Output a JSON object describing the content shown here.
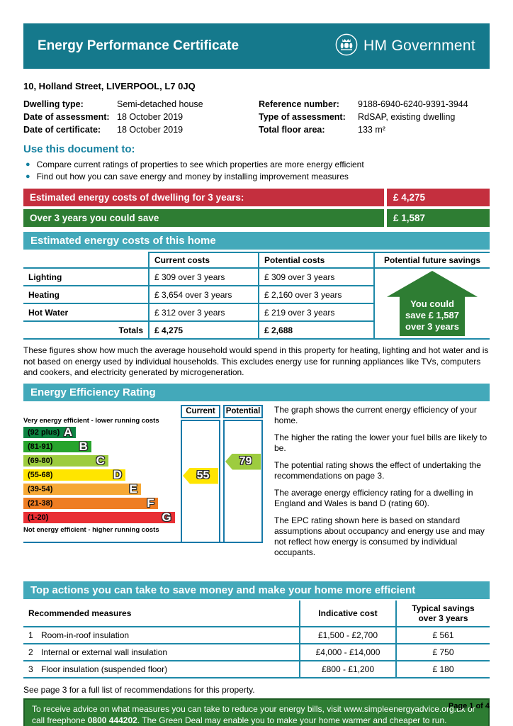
{
  "header": {
    "title": "Energy Performance Certificate",
    "gov_label": "HM Government"
  },
  "property": {
    "address": "10, Holland Street, LIVERPOOL, L7 0JQ",
    "details_left": [
      {
        "label": "Dwelling type:",
        "value": "Semi-detached house"
      },
      {
        "label": "Date of assessment:",
        "value": "18 October 2019"
      },
      {
        "label": "Date of certificate:",
        "value": "18 October 2019"
      }
    ],
    "details_right": [
      {
        "label": "Reference number:",
        "value": "9188-6940-6240-9391-3944"
      },
      {
        "label": "Type of assessment:",
        "value": "RdSAP, existing dwelling"
      },
      {
        "label": "Total floor area:",
        "value": "133 m²"
      }
    ]
  },
  "usage": {
    "heading": "Use this document to:",
    "bullet_icon": "●",
    "bullets": [
      "Compare current ratings of properties to see which properties are more energy efficient",
      "Find out how you can save energy and money by installing improvement measures"
    ]
  },
  "cost_bars": [
    {
      "label": "Estimated energy costs of dwelling for 3 years:",
      "value": "£ 4,275",
      "color": "#c42f3e"
    },
    {
      "label": "Over 3 years you could save",
      "value": "£ 1,587",
      "color": "#2e7d33"
    }
  ],
  "costs_section": {
    "banner": "Estimated energy costs of this home",
    "table": {
      "headers": [
        "",
        "Current costs",
        "Potential costs",
        "Potential future savings"
      ],
      "rows": [
        {
          "label": "Lighting",
          "current": "£ 309 over 3 years",
          "potential": "£ 309 over 3 years"
        },
        {
          "label": "Heating",
          "current": "£ 3,654 over 3 years",
          "potential": "£ 2,160 over 3 years"
        },
        {
          "label": "Hot Water",
          "current": "£ 312 over 3 years",
          "potential": "£ 219 over 3 years"
        }
      ],
      "totals_label": "Totals",
      "totals_current": "£ 4,275",
      "totals_potential": "£ 2,688",
      "savings_arrow_lines": [
        "You could",
        "save £ 1,587",
        "over 3 years"
      ]
    },
    "note": "These figures show how much the average household would spend in this property for heating, lighting and hot water and is not based on energy used by individual households. This excludes energy use for running appliances like TVs, computers and cookers, and electricity generated by microgeneration."
  },
  "rating_section": {
    "banner": "Energy Efficiency Rating",
    "chart_data": {
      "type": "bar",
      "title": "Energy Efficiency Rating",
      "top_label": "Very energy efficient - lower running costs",
      "bottom_label": "Not energy efficient - higher running costs",
      "columns": [
        "Current",
        "Potential"
      ],
      "bands": [
        {
          "letter": "A",
          "range": "(92 plus)",
          "color": "#0c8342",
          "width_pct": 34
        },
        {
          "letter": "B",
          "range": "(81-91)",
          "color": "#27a42c",
          "width_pct": 44
        },
        {
          "letter": "C",
          "range": "(69-80)",
          "color": "#9dcc3f",
          "width_pct": 55
        },
        {
          "letter": "D",
          "range": "(55-68)",
          "color": "#ffe500",
          "width_pct": 66
        },
        {
          "letter": "E",
          "range": "(39-54)",
          "color": "#f6a835",
          "width_pct": 76
        },
        {
          "letter": "F",
          "range": "(21-38)",
          "color": "#ee7d23",
          "width_pct": 87
        },
        {
          "letter": "G",
          "range": "(1-20)",
          "color": "#e92f34",
          "width_pct": 98
        }
      ],
      "current": {
        "value": 55,
        "band": "D",
        "color": "#ffe500"
      },
      "potential": {
        "value": 79,
        "band": "C",
        "color": "#9dcc3f"
      }
    },
    "paragraphs": [
      "The graph shows the current energy efficiency of your home.",
      "The higher the rating the lower your fuel bills are likely to be.",
      "The potential rating shows the effect of undertaking the recommendations on page 3.",
      "The average energy efficiency rating for a dwelling in England and Wales is band D (rating 60).",
      "The EPC rating shown here is based on standard assumptions about occupancy and energy use and may not reflect how energy is consumed by individual occupants."
    ]
  },
  "actions_section": {
    "banner": "Top actions you can take to save money and make your home more efficient",
    "table": {
      "headers": [
        "Recommended measures",
        "Indicative cost",
        "Typical savings over 3 years"
      ],
      "rows": [
        {
          "num": "1",
          "measure": "Room-in-roof insulation",
          "cost": "£1,500 - £2,700",
          "savings": "£ 561"
        },
        {
          "num": "2",
          "measure": "Internal or external wall insulation",
          "cost": "£4,000 - £14,000",
          "savings": "£ 750"
        },
        {
          "num": "3",
          "measure": "Floor insulation (suspended floor)",
          "cost": "£800 - £1,200",
          "savings": "£ 180"
        }
      ]
    },
    "see_more": "See page 3 for a full list of recommendations for this property.",
    "advice": {
      "pre": "To receive advice on what measures you can take to reduce your energy bills, visit www.simpleenergyadvice.org.uk or call freephone ",
      "phone": "0800 444202",
      "post": ". The Green Deal may enable you to make your home warmer and cheaper to run."
    }
  },
  "footer": {
    "page": "Page 1 of 4"
  },
  "colors": {
    "header_teal": "#15798c",
    "banner_teal": "#43a9ba",
    "heading_text_teal": "#1681a0",
    "cost_red": "#c42f3e",
    "cost_green": "#2e7d33",
    "table_border": "#1e89a8",
    "chart_border": "#1879a8",
    "advice_border": "#1e5c24"
  }
}
